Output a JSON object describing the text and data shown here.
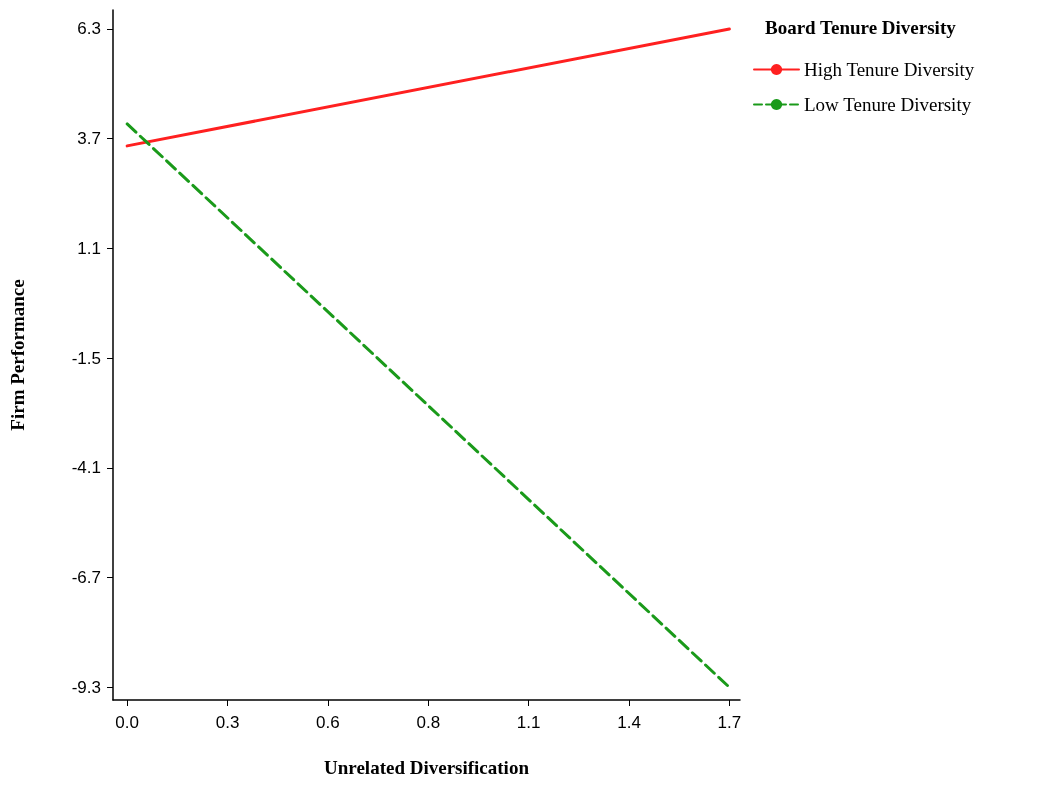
{
  "chart_data": {
    "type": "line",
    "xlabel": "Unrelated Diversification",
    "ylabel": "Firm Performance",
    "legend_title": "Board Tenure Diversity",
    "x": [
      0,
      1.7
    ],
    "series": [
      {
        "name": "High Tenure Diversity",
        "color": "#ff2020",
        "values": [
          3.53,
          6.3
        ],
        "line_style": "solid"
      },
      {
        "name": "Low Tenure Diversity",
        "color": "#1a9a1a",
        "values": [
          4.05,
          -9.3
        ],
        "line_style": "dashed"
      }
    ],
    "xlim": [
      -0.04,
      1.73
    ],
    "xticks": [
      {
        "value": 0,
        "label": "0.0"
      },
      {
        "value": 0.2833,
        "label": "0.3"
      },
      {
        "value": 0.5667,
        "label": "0.6"
      },
      {
        "value": 0.85,
        "label": "0.8"
      },
      {
        "value": 1.1333,
        "label": "1.1"
      },
      {
        "value": 1.4167,
        "label": "1.4"
      },
      {
        "value": 1.7,
        "label": "1.7"
      }
    ],
    "ylim": [
      -9.6,
      6.75
    ],
    "yticks": [
      6.3,
      3.7,
      1.1,
      -1.5,
      -4.1,
      -6.7,
      -9.3
    ],
    "grid": false,
    "legend": "top right",
    "marker": "none"
  }
}
